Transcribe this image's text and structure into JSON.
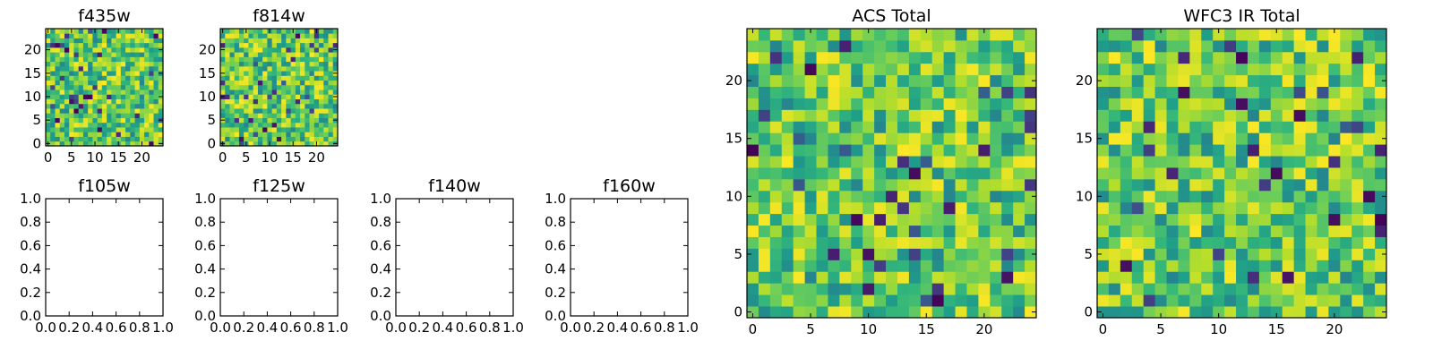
{
  "chart_data": [
    {
      "id": "f435w",
      "type": "heatmap",
      "title": "f435w",
      "grid_size": [
        25,
        25
      ],
      "colormap": "viridis",
      "xlim": [
        -0.5,
        24.5
      ],
      "ylim": [
        -0.5,
        24.5
      ],
      "xticks": [
        0,
        5,
        10,
        15,
        20
      ],
      "yticks": [
        0,
        5,
        10,
        15,
        20
      ],
      "xtick_labels": [
        "0",
        "5",
        "10",
        "15",
        "20"
      ],
      "ytick_labels": [
        "0",
        "5",
        "10",
        "15",
        "20"
      ],
      "seed": 11,
      "value_range": [
        0,
        1
      ]
    },
    {
      "id": "f814w",
      "type": "heatmap",
      "title": "f814w",
      "grid_size": [
        25,
        25
      ],
      "colormap": "viridis",
      "xlim": [
        -0.5,
        24.5
      ],
      "ylim": [
        -0.5,
        24.5
      ],
      "xticks": [
        0,
        5,
        10,
        15,
        20
      ],
      "yticks": [
        0,
        5,
        10,
        15,
        20
      ],
      "xtick_labels": [
        "0",
        "5",
        "10",
        "15",
        "20"
      ],
      "ytick_labels": [
        "0",
        "5",
        "10",
        "15",
        "20"
      ],
      "seed": 23,
      "value_range": [
        0,
        1
      ]
    },
    {
      "id": "f105w",
      "type": "line",
      "title": "f105w",
      "xlim": [
        0,
        1
      ],
      "ylim": [
        0,
        1
      ],
      "xticks": [
        0,
        0.2,
        0.4,
        0.6,
        0.8,
        1
      ],
      "yticks": [
        0,
        0.2,
        0.4,
        0.6,
        0.8,
        1
      ],
      "xtick_labels": [
        "0.0",
        "0.2",
        "0.4",
        "0.6",
        "0.8",
        "1.0"
      ],
      "ytick_labels": [
        "0.0",
        "0.2",
        "0.4",
        "0.6",
        "0.8",
        "1.0"
      ],
      "series": []
    },
    {
      "id": "f125w",
      "type": "line",
      "title": "f125w",
      "xlim": [
        0,
        1
      ],
      "ylim": [
        0,
        1
      ],
      "xticks": [
        0,
        0.2,
        0.4,
        0.6,
        0.8,
        1
      ],
      "yticks": [
        0,
        0.2,
        0.4,
        0.6,
        0.8,
        1
      ],
      "xtick_labels": [
        "0.0",
        "0.2",
        "0.4",
        "0.6",
        "0.8",
        "1.0"
      ],
      "ytick_labels": [
        "0.0",
        "0.2",
        "0.4",
        "0.6",
        "0.8",
        "1.0"
      ],
      "series": []
    },
    {
      "id": "f140w",
      "type": "line",
      "title": "f140w",
      "xlim": [
        0,
        1
      ],
      "ylim": [
        0,
        1
      ],
      "xticks": [
        0,
        0.2,
        0.4,
        0.6,
        0.8,
        1
      ],
      "yticks": [
        0,
        0.2,
        0.4,
        0.6,
        0.8,
        1
      ],
      "xtick_labels": [
        "0.0",
        "0.2",
        "0.4",
        "0.6",
        "0.8",
        "1.0"
      ],
      "ytick_labels": [
        "0.0",
        "0.2",
        "0.4",
        "0.6",
        "0.8",
        "1.0"
      ],
      "series": []
    },
    {
      "id": "f160w",
      "type": "line",
      "title": "f160w",
      "xlim": [
        0,
        1
      ],
      "ylim": [
        0,
        1
      ],
      "xticks": [
        0,
        0.2,
        0.4,
        0.6,
        0.8,
        1
      ],
      "yticks": [
        0,
        0.2,
        0.4,
        0.6,
        0.8,
        1
      ],
      "xtick_labels": [
        "0.0",
        "0.2",
        "0.4",
        "0.6",
        "0.8",
        "1.0"
      ],
      "ytick_labels": [
        "0.0",
        "0.2",
        "0.4",
        "0.6",
        "0.8",
        "1.0"
      ],
      "series": []
    },
    {
      "id": "acs-total",
      "type": "heatmap",
      "title": "ACS Total",
      "grid_size": [
        25,
        25
      ],
      "colormap": "viridis",
      "xlim": [
        -0.5,
        24.5
      ],
      "ylim": [
        -0.5,
        24.5
      ],
      "xticks": [
        0,
        5,
        10,
        15,
        20
      ],
      "yticks": [
        0,
        5,
        10,
        15,
        20
      ],
      "xtick_labels": [
        "0",
        "5",
        "10",
        "15",
        "20"
      ],
      "ytick_labels": [
        "0",
        "5",
        "10",
        "15",
        "20"
      ],
      "seed": 37,
      "value_range": [
        0,
        1
      ]
    },
    {
      "id": "wfc3-ir-total",
      "type": "heatmap",
      "title": "WFC3 IR Total",
      "grid_size": [
        25,
        25
      ],
      "colormap": "viridis",
      "xlim": [
        -0.5,
        24.5
      ],
      "ylim": [
        -0.5,
        24.5
      ],
      "xticks": [
        0,
        5,
        10,
        15,
        20
      ],
      "yticks": [
        0,
        5,
        10,
        15,
        20
      ],
      "xtick_labels": [
        "0",
        "5",
        "10",
        "15",
        "20"
      ],
      "ytick_labels": [
        "0",
        "5",
        "10",
        "15",
        "20"
      ],
      "seed": 53,
      "value_range": [
        0,
        1
      ]
    }
  ]
}
